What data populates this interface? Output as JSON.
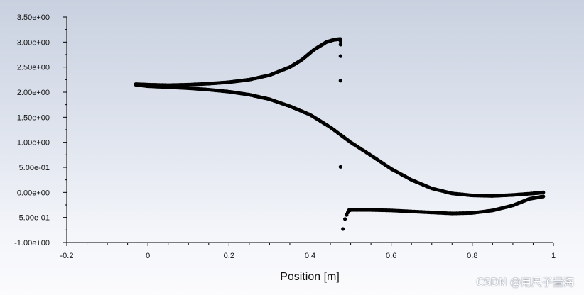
{
  "watermark": "CSDN @用尺子量海",
  "chart_data": {
    "type": "scatter",
    "title": "",
    "xlabel": "Position [m]",
    "ylabel": "",
    "xlim": [
      -0.2,
      1.0
    ],
    "ylim": [
      -1.0,
      3.5
    ],
    "grid": false,
    "legend": "none",
    "x_ticks": [
      -0.2,
      0,
      0.2,
      0.4,
      0.6,
      0.8,
      1.0
    ],
    "x_tick_labels": [
      "-0.2",
      "0",
      "0.2",
      "0.4",
      "0.6",
      "0.8",
      "1"
    ],
    "y_ticks": [
      -1.0,
      -0.5,
      0.0,
      0.5,
      1.0,
      1.5,
      2.0,
      2.5,
      3.0,
      3.5
    ],
    "y_tick_labels": [
      "-1.00e+00",
      "-5.00e-01",
      "0.00e+00",
      "5.00e-01",
      "1.00e+00",
      "1.50e+00",
      "2.00e+00",
      "2.50e+00",
      "3.00e+00",
      "3.50e+00"
    ],
    "marker_color": "#000000",
    "series": [
      {
        "x": [
          -0.03,
          0.0,
          0.05,
          0.1,
          0.15,
          0.2,
          0.25,
          0.3,
          0.35,
          0.4,
          0.45,
          0.5,
          0.55,
          0.6,
          0.65,
          0.7,
          0.75,
          0.8,
          0.85,
          0.9,
          0.95,
          0.975
        ],
        "y": [
          2.15,
          2.12,
          2.1,
          2.08,
          2.05,
          2.01,
          1.95,
          1.86,
          1.72,
          1.55,
          1.3,
          1.0,
          0.74,
          0.47,
          0.25,
          0.08,
          -0.02,
          -0.06,
          -0.07,
          -0.05,
          -0.02,
          0.0
        ]
      },
      {
        "x": [
          -0.03,
          0.0,
          0.05,
          0.1,
          0.15,
          0.2,
          0.25,
          0.3,
          0.35,
          0.38,
          0.41,
          0.44,
          0.46,
          0.475
        ],
        "y": [
          2.16,
          2.15,
          2.14,
          2.15,
          2.17,
          2.2,
          2.25,
          2.34,
          2.5,
          2.65,
          2.85,
          3.0,
          3.05,
          3.06
        ]
      },
      {
        "x": [
          0.495,
          0.5,
          0.55,
          0.6,
          0.65,
          0.7,
          0.75,
          0.8,
          0.85,
          0.9,
          0.94,
          0.975
        ],
        "y": [
          -0.36,
          -0.35,
          -0.35,
          -0.36,
          -0.38,
          -0.4,
          -0.42,
          -0.41,
          -0.36,
          -0.26,
          -0.13,
          -0.08
        ]
      },
      {
        "x": [
          0.475,
          0.475,
          0.475,
          0.475,
          0.475,
          0.481,
          0.486,
          0.49,
          0.493
        ],
        "y": [
          3.02,
          2.95,
          2.72,
          2.23,
          0.51,
          -0.73,
          -0.53,
          -0.45,
          -0.4
        ]
      }
    ]
  }
}
